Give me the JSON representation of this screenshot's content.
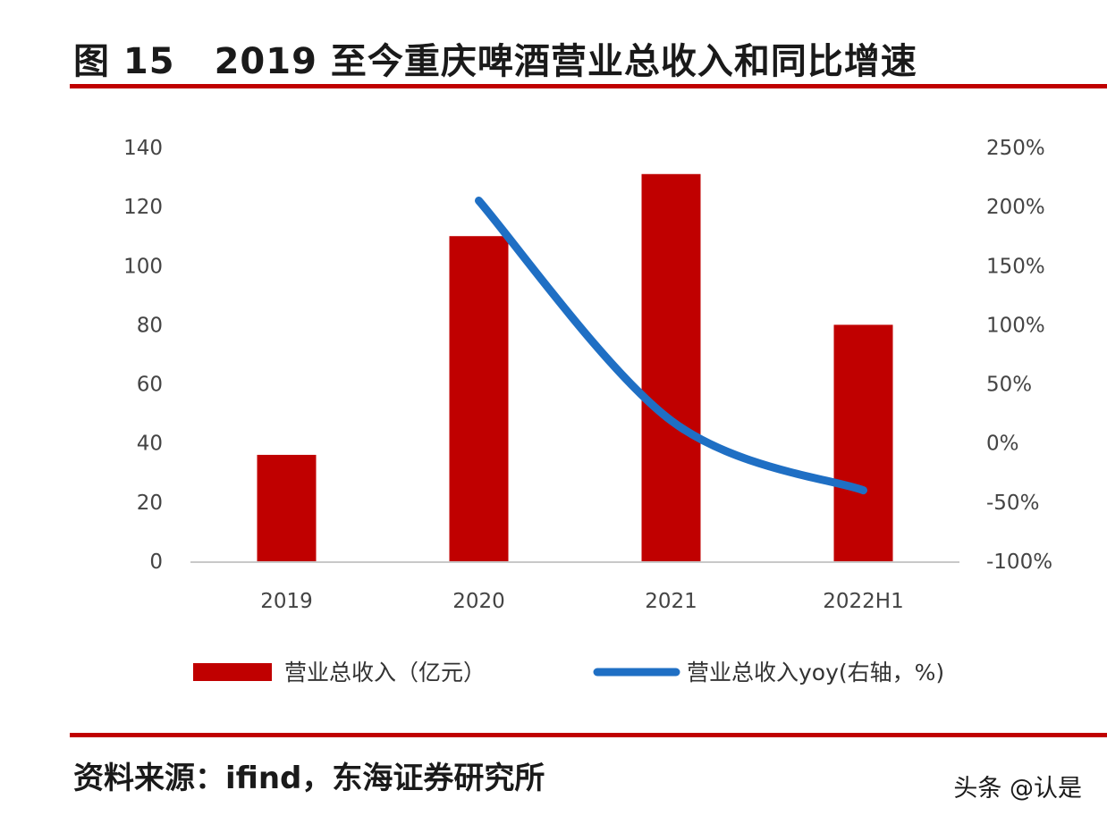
{
  "figure": {
    "number": "图 15",
    "title": "2019 至今重庆啤酒营业总收入和同比增速"
  },
  "source": "资料来源：ifind，东海证券研究所",
  "watermark": "头条 @认是",
  "colors": {
    "bar": "#c00000",
    "line": "#1f6fc4",
    "rule": "#c00000",
    "axis": "#c8c8c8"
  },
  "chart_data": {
    "type": "bar",
    "title": "2019 至今重庆啤酒营业总收入和同比增速",
    "categories": [
      "2019",
      "2020",
      "2021",
      "2022H1"
    ],
    "y_ticks": [
      "0",
      "20",
      "40",
      "60",
      "80",
      "100",
      "120",
      "140"
    ],
    "y2_ticks": [
      "-100%",
      "-50%",
      "0%",
      "50%",
      "100%",
      "150%",
      "200%",
      "250%"
    ],
    "ylim": [
      0,
      140
    ],
    "y2lim": [
      -100,
      250
    ],
    "series": [
      {
        "name": "营业总收入（亿元）",
        "type": "bar",
        "axis": "left",
        "values": [
          36,
          110,
          131,
          80
        ]
      },
      {
        "name": "营业总收入yoy(右轴，%)",
        "type": "line",
        "axis": "right",
        "values": [
          null,
          205,
          19,
          -40
        ]
      }
    ],
    "legend_position": "bottom"
  }
}
